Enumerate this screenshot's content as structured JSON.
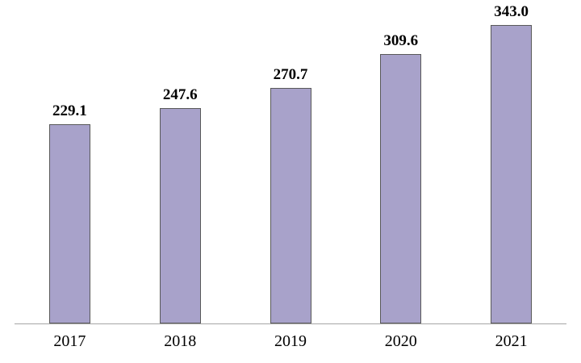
{
  "chart_data": {
    "type": "bar",
    "title": "",
    "xlabel": "",
    "ylabel": "",
    "categories": [
      "2017",
      "2018",
      "2019",
      "2020",
      "2021"
    ],
    "values": [
      229.1,
      247.6,
      270.7,
      309.6,
      343.0
    ],
    "value_labels": [
      "229.1",
      "247.6",
      "270.7",
      "309.6",
      "343.0"
    ],
    "series_name": "",
    "ylim": [
      0,
      343
    ],
    "gridlines": false,
    "legend": false,
    "y_axis_visible": false,
    "colors": {
      "bar_fill": "#a8a2ca",
      "bar_border": "#595959",
      "axis_line": "#a6a6a6",
      "text": "#000000",
      "background": "#ffffff"
    }
  }
}
